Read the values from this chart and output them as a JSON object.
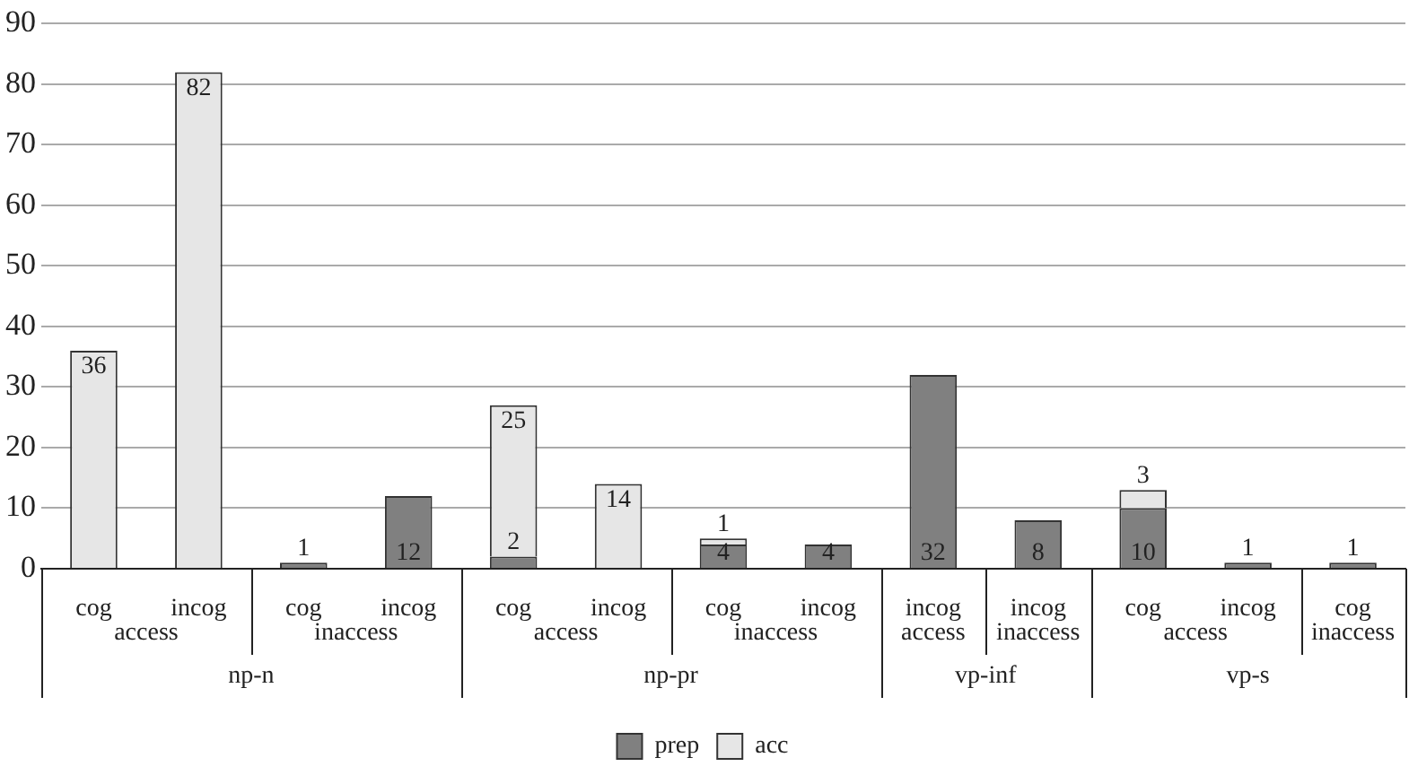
{
  "chart_data": {
    "type": "bar",
    "stacked": true,
    "categories": [
      "cog",
      "incog",
      "cog",
      "incog",
      "cog",
      "incog",
      "cog",
      "incog",
      "incog",
      "incog",
      "cog",
      "incog",
      "cog"
    ],
    "series": [
      {
        "name": "prep",
        "color": "#808080",
        "values": [
          null,
          null,
          1,
          12,
          2,
          null,
          4,
          4,
          32,
          8,
          10,
          1,
          1
        ]
      },
      {
        "name": "acc",
        "color": "#e6e6e6",
        "values": [
          36,
          82,
          null,
          null,
          25,
          14,
          1,
          null,
          null,
          null,
          3,
          null,
          null
        ]
      }
    ],
    "annotations": [
      "access",
      "inaccess",
      "access",
      "inaccess",
      "access",
      "inaccess",
      "access",
      "inaccess",
      "np-n",
      "np-pr",
      "vp-inf",
      "vp-s"
    ],
    "ylim": [
      0,
      90
    ],
    "yticks": [
      0,
      10,
      20,
      30,
      40,
      50,
      60,
      70,
      80,
      90
    ],
    "grid": "y",
    "legend": "bottom",
    "data_labels": true
  }
}
